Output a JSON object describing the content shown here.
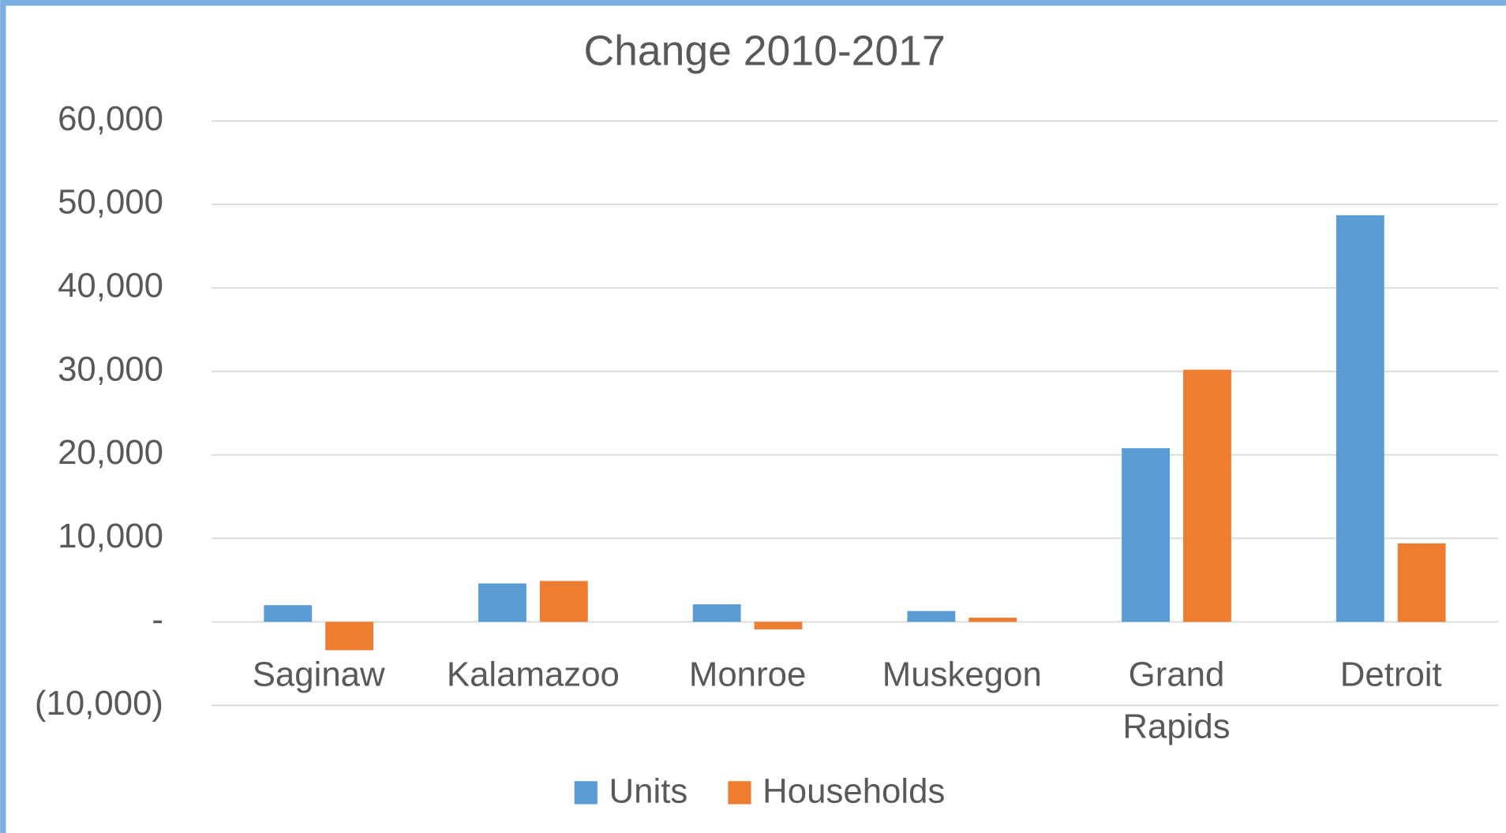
{
  "chart_data": {
    "type": "bar",
    "title": "Change 2010-2017",
    "categories": [
      "Saginaw",
      "Kalamazoo",
      "Monroe",
      "Muskegon",
      "Grand Rapids",
      "Detroit"
    ],
    "series": [
      {
        "name": "Units",
        "color": "#5b9bd5",
        "values": [
          2000,
          4600,
          2100,
          1300,
          20800,
          48700
        ]
      },
      {
        "name": "Households",
        "color": "#ed7d31",
        "values": [
          -3400,
          4900,
          -900,
          500,
          30200,
          9400
        ]
      }
    ],
    "ylim": [
      -10000,
      60000
    ],
    "yticks": [
      {
        "value": -10000,
        "label": "(10,000)"
      },
      {
        "value": 0,
        "label": "-"
      },
      {
        "value": 10000,
        "label": "10,000"
      },
      {
        "value": 20000,
        "label": "20,000"
      },
      {
        "value": 30000,
        "label": "30,000"
      },
      {
        "value": 40000,
        "label": "40,000"
      },
      {
        "value": 50000,
        "label": "50,000"
      },
      {
        "value": 60000,
        "label": "60,000"
      }
    ],
    "grid": true,
    "legend": "bottom"
  }
}
